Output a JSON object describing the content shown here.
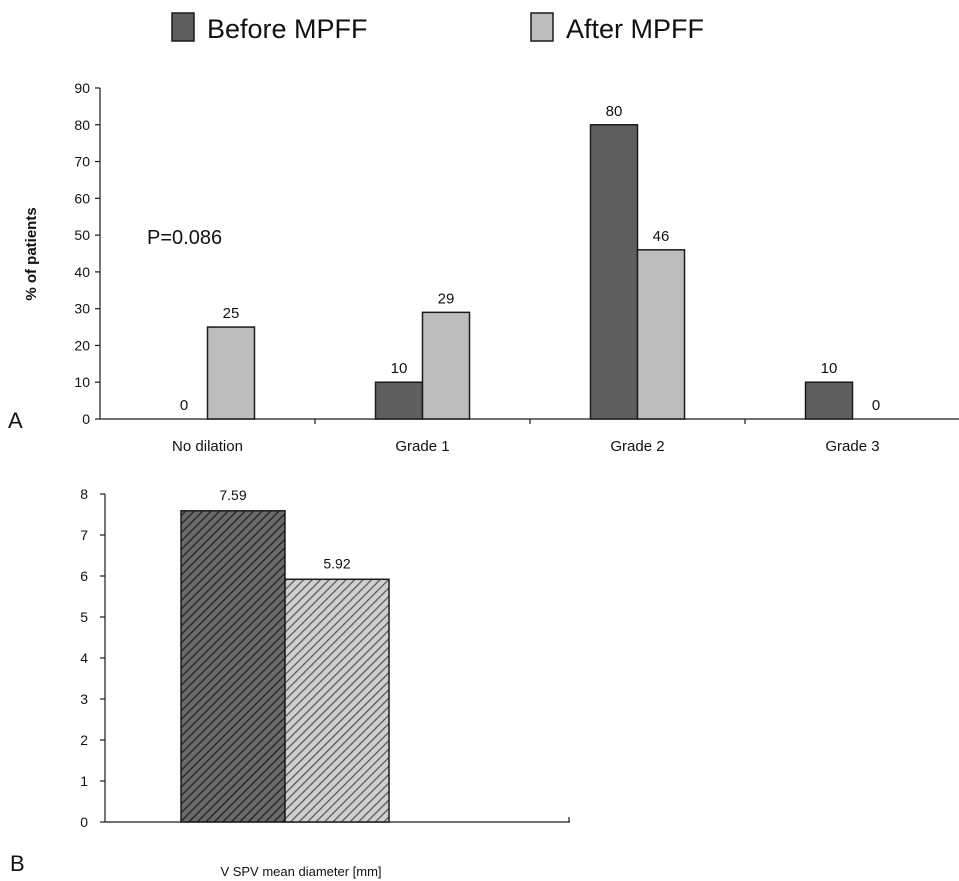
{
  "colors": {
    "before": "#5f5f5f",
    "after": "#bdbdbd",
    "stroke": "#1a1a1a"
  },
  "chart_data": [
    {
      "panel_label": "A",
      "type": "bar",
      "legend": {
        "placement": "top",
        "entries": [
          "Before MPFF",
          "After MPFF"
        ]
      },
      "annotation": "P=0.086",
      "ylabel": "% of patients",
      "xlabel": "",
      "ylim": [
        0,
        90
      ],
      "yticks": [
        0,
        10,
        20,
        30,
        40,
        50,
        60,
        70,
        80,
        90
      ],
      "categories": [
        "No dilation",
        "Grade 1",
        "Grade 2",
        "Grade 3"
      ],
      "series": [
        {
          "name": "Before MPFF",
          "values": [
            0,
            10,
            80,
            10
          ]
        },
        {
          "name": "After MPFF",
          "values": [
            25,
            29,
            46,
            0
          ]
        }
      ],
      "grid": false
    },
    {
      "panel_label": "B",
      "type": "bar",
      "xlabel": "V SPV mean diameter [mm]",
      "ylabel": "",
      "ylim": [
        0,
        8
      ],
      "yticks": [
        0,
        1,
        2,
        3,
        4,
        5,
        6,
        7,
        8
      ],
      "bars": [
        {
          "value": 7.59,
          "label": "7.59"
        },
        {
          "value": 5.92,
          "label": "5.92"
        }
      ],
      "grid": false
    }
  ]
}
